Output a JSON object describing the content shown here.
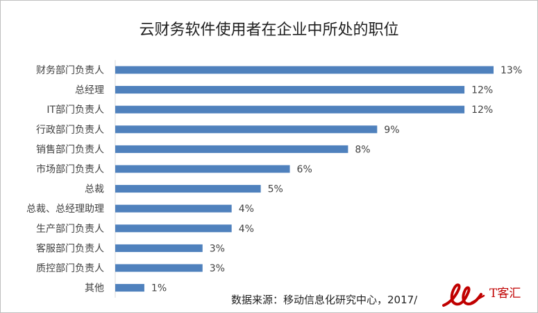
{
  "chart_data": {
    "type": "bar",
    "orientation": "horizontal",
    "title": "云财务软件使用者在企业中所处的职位",
    "xlabel": "",
    "ylabel": "",
    "categories": [
      "财务部门负责人",
      "总经理",
      "IT部门负责人",
      "行政部门负责人",
      "销售部门负责人",
      "市场部门负责人",
      "总裁",
      "总裁、总经理助理",
      "生产部门负责人",
      "客服部门负责人",
      "质控部门负责人",
      "其他"
    ],
    "values": [
      13,
      12,
      12,
      9,
      8,
      6,
      5,
      4,
      4,
      3,
      3,
      1
    ],
    "value_labels": [
      "13%",
      "12%",
      "12%",
      "9%",
      "8%",
      "6%",
      "5%",
      "4%",
      "4%",
      "3%",
      "3%",
      "1%"
    ],
    "unit": "%",
    "xlim": [
      0,
      13
    ],
    "grid": false,
    "legend": "none",
    "bar_color": "#4f81bd"
  },
  "source": "数据来源：移动信息化研究中心，2017/",
  "watermark": {
    "icon": "it-keji-logo",
    "text": "T客汇",
    "color": "#c00000"
  }
}
